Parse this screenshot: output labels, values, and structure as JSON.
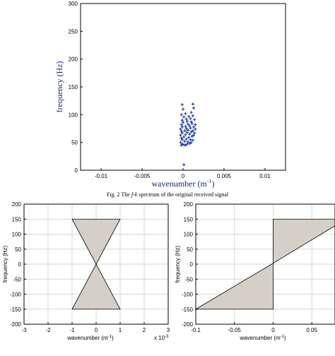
{
  "figure_caption": {
    "prefix": "Fig. 2",
    "text_before": "The ",
    "italic": "f-k",
    "text_after": " spectrum of the original received signal"
  },
  "chart_data": [
    {
      "type": "scatter",
      "title": "",
      "xlabel": "wavenumber (m",
      "xlabel_sup": "-1",
      "xlabel_close": ")",
      "ylabel": "frequency (Hz)",
      "xlim": [
        -0.0125,
        0.0125
      ],
      "ylim": [
        0,
        300
      ],
      "x_ticks": [
        -0.01,
        -0.005,
        0,
        0.005,
        0.01
      ],
      "x_tick_labels": [
        "-0.01",
        "-0.005",
        "0",
        "0.005",
        "0.01"
      ],
      "y_ticks": [
        0,
        50,
        100,
        150,
        200,
        250,
        300
      ],
      "y_tick_labels": [
        "0",
        "50",
        "100",
        "150",
        "200",
        "250",
        "300"
      ],
      "grid": false,
      "marker_color": "#1f3da8",
      "points": [
        [
          -0.0002,
          45
        ],
        [
          -0.0001,
          47
        ],
        [
          0.0001,
          46
        ],
        [
          0.0003,
          45
        ],
        [
          0.0005,
          47
        ],
        [
          0.0008,
          48
        ],
        [
          -0.0003,
          50
        ],
        [
          0.0002,
          52
        ],
        [
          0.0006,
          51
        ],
        [
          0.001,
          50
        ],
        [
          -0.0001,
          55
        ],
        [
          0.0004,
          56
        ],
        [
          0.0009,
          55
        ],
        [
          0.0012,
          54
        ],
        [
          -0.0002,
          58
        ],
        [
          0.0001,
          60
        ],
        [
          0.0007,
          59
        ],
        [
          0.0011,
          61
        ],
        [
          -0.0003,
          63
        ],
        [
          0.0003,
          64
        ],
        [
          0.0008,
          65
        ],
        [
          0.0013,
          63
        ],
        [
          -0.0001,
          67
        ],
        [
          0.0005,
          68
        ],
        [
          0.001,
          69
        ],
        [
          0.0014,
          67
        ],
        [
          -0.0002,
          70
        ],
        [
          0.0002,
          71
        ],
        [
          0.0006,
          72
        ],
        [
          0.0012,
          71
        ],
        [
          -0.0003,
          74
        ],
        [
          0.0004,
          75
        ],
        [
          0.0009,
          76
        ],
        [
          0.0015,
          74
        ],
        [
          -0.0001,
          78
        ],
        [
          0.0003,
          79
        ],
        [
          0.0008,
          80
        ],
        [
          0.0013,
          78
        ],
        [
          -0.0002,
          82
        ],
        [
          0.0006,
          83
        ],
        [
          0.0011,
          84
        ],
        [
          0.0015,
          82
        ],
        [
          0.0,
          86
        ],
        [
          0.0005,
          88
        ],
        [
          0.001,
          87
        ],
        [
          -0.0001,
          90
        ],
        [
          0.0004,
          92
        ],
        [
          0.0009,
          93
        ],
        [
          0.0014,
          91
        ],
        [
          0.0001,
          96
        ],
        [
          0.0007,
          97
        ],
        [
          0.0012,
          98
        ],
        [
          -0.0002,
          100
        ],
        [
          0.0003,
          102
        ],
        [
          0.001,
          104
        ],
        [
          0.0,
          110
        ],
        [
          0.0013,
          112
        ],
        [
          -0.0001,
          118
        ],
        [
          0.0012,
          119
        ],
        [
          0.0001,
          10
        ]
      ]
    },
    {
      "type": "area",
      "title": "",
      "xlabel": "wavenumber (m",
      "xlabel_sup": "-1",
      "xlabel_close": ")",
      "ylabel": "frequency (Hz)",
      "xlim": [
        -3,
        3
      ],
      "ylim": [
        -200,
        200
      ],
      "x_ticks": [
        -3,
        -2,
        -1,
        0,
        1,
        2,
        3
      ],
      "x_tick_labels": [
        "-3",
        "-2",
        "-1",
        "0",
        "1",
        "2",
        "3"
      ],
      "y_ticks": [
        -200,
        -150,
        -100,
        -50,
        0,
        50,
        100,
        150,
        200
      ],
      "y_tick_labels": [
        "-200",
        "-150",
        "-100",
        "-50",
        "0",
        "50",
        "100",
        "150",
        "200"
      ],
      "x_multiplier_label": "x 10",
      "x_multiplier_exp": "-3",
      "grid": true,
      "fill_color": "#d4d0c8",
      "region_upper": [
        [
          -1,
          150
        ],
        [
          1,
          150
        ],
        [
          0,
          0
        ]
      ],
      "region_lower": [
        [
          -1,
          -150
        ],
        [
          1,
          -150
        ],
        [
          0,
          0
        ]
      ]
    },
    {
      "type": "area",
      "title": "",
      "xlabel": "wavenumber (m",
      "xlabel_sup": "-1",
      "xlabel_close": ")",
      "ylabel": "frequency (Hz)",
      "xlim": [
        -0.1,
        0.08
      ],
      "ylim": [
        -200,
        200
      ],
      "x_ticks": [
        -0.1,
        -0.05,
        0,
        0.05
      ],
      "x_tick_labels": [
        "-0.1",
        "-0.05",
        "0",
        "0.05"
      ],
      "y_ticks": [
        -200,
        -150,
        -100,
        -50,
        0,
        50,
        100,
        150,
        200
      ],
      "y_tick_labels": [
        "-200",
        "-150",
        "-100",
        "-50",
        "0",
        "50",
        "100",
        "150",
        "200"
      ],
      "grid": true,
      "fill_color": "#d4d0c8",
      "region_upper": [
        [
          0,
          150
        ],
        [
          0.08,
          150
        ],
        [
          0.08,
          128
        ],
        [
          0,
          3
        ]
      ],
      "region_lower": [
        [
          -0.1,
          -150
        ],
        [
          0,
          -150
        ],
        [
          0,
          3
        ]
      ]
    }
  ]
}
